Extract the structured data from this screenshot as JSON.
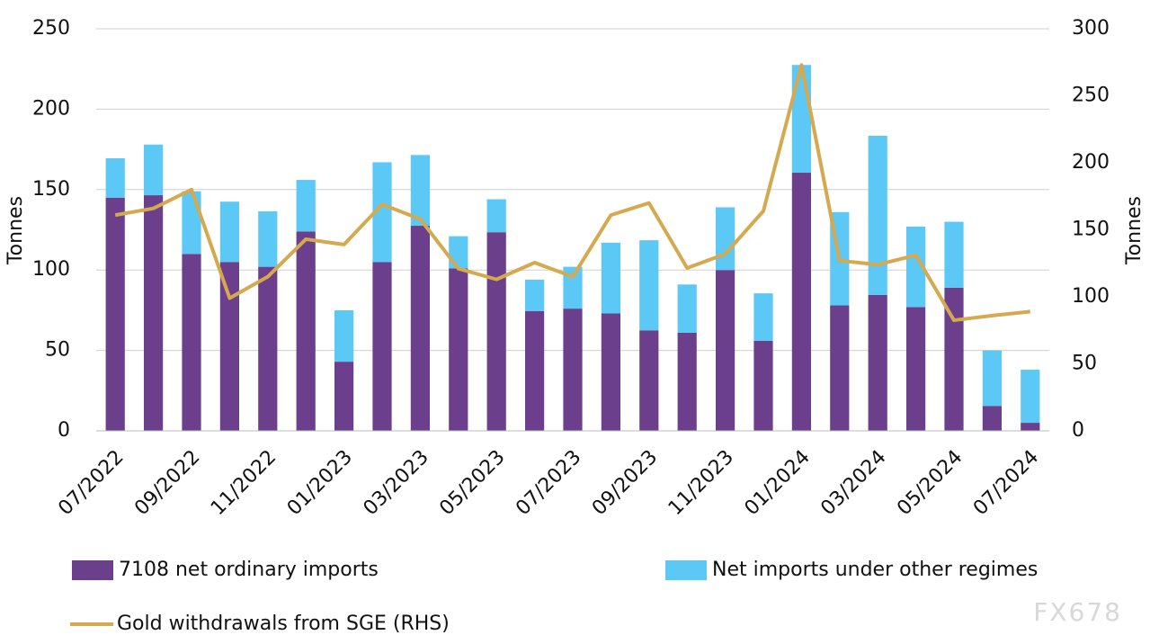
{
  "chart_data": {
    "type": "bar",
    "stacked": true,
    "categories": [
      "07/2022",
      null,
      "09/2022",
      null,
      "11/2022",
      null,
      "01/2023",
      null,
      "03/2023",
      null,
      "05/2023",
      null,
      "07/2023",
      null,
      "09/2023",
      null,
      "11/2023",
      null,
      "01/2024",
      null,
      "03/2024",
      null,
      "05/2024",
      null,
      "07/2024"
    ],
    "series": [
      {
        "name": "7108 net ordinary imports",
        "color": "#6b3f8c",
        "type": "bar",
        "values": [
          145,
          146.5,
          110,
          105,
          102,
          124,
          43,
          105,
          127.5,
          101,
          123.5,
          74.5,
          76,
          73,
          62.5,
          61,
          100,
          56,
          160.5,
          78,
          84.5,
          77,
          89,
          15.5,
          5
        ]
      },
      {
        "name": "Net imports under other regimes",
        "color": "#5bc8f5",
        "type": "bar",
        "values": [
          24.5,
          31.5,
          39,
          37.5,
          34.5,
          32,
          32,
          62,
          44,
          20,
          20.5,
          19.5,
          26,
          44,
          56,
          30,
          39,
          29.5,
          67,
          58,
          99,
          50,
          41,
          34.5,
          33
        ]
      },
      {
        "name": "Gold withdrawals from SGE (RHS)",
        "color": "#d4a94f",
        "type": "line",
        "axis": "y2",
        "values": [
          161,
          166,
          180,
          99,
          115,
          143,
          139,
          169,
          158,
          121,
          113,
          125.5,
          115,
          161,
          170,
          121.5,
          132,
          164,
          273,
          127,
          124,
          131,
          82.5,
          86,
          89
        ]
      }
    ],
    "ylabel": "Tonnes",
    "y2label": "Tonnes",
    "ylim": [
      0,
      250
    ],
    "yticks": [
      0,
      50,
      100,
      150,
      200,
      250
    ],
    "y2lim": [
      0,
      300
    ],
    "y2ticks": [
      0,
      50,
      100,
      150,
      200,
      250,
      300
    ],
    "grid": true,
    "legend": "bottom",
    "watermark": "FX678"
  }
}
